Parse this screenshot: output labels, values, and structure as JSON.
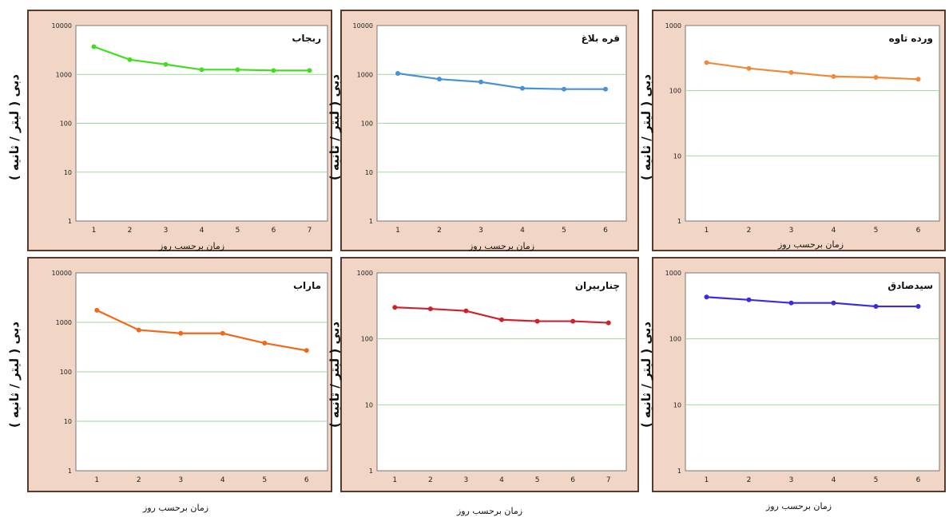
{
  "chart_data": [
    {
      "type": "line",
      "title": "ربجاب",
      "xlabel": "زمان برحسب روز",
      "ylabel": "دبی ( لیتر / ثانیه )",
      "yscale": "log",
      "ylim": [
        1,
        10000
      ],
      "yticks": [
        "1",
        "10",
        "100",
        "1000",
        "10000"
      ],
      "x": [
        1,
        2,
        3,
        4,
        5,
        6,
        7
      ],
      "y": [
        3700,
        2000,
        1600,
        1250,
        1250,
        1200,
        1200
      ],
      "color": "#44dd22"
    },
    {
      "type": "line",
      "title": "قره بلاغ",
      "xlabel": "زمان برحسب روز",
      "ylabel": "دبی ( لیتر / ثانیه )",
      "yscale": "log",
      "ylim": [
        1,
        10000
      ],
      "yticks": [
        "1",
        "10",
        "100",
        "1000",
        "10000"
      ],
      "x": [
        1,
        2,
        3,
        4,
        5,
        6
      ],
      "y": [
        1050,
        800,
        700,
        520,
        500,
        500
      ],
      "color": "#4a90d9"
    },
    {
      "type": "line",
      "title": "ورده تاوه",
      "xlabel": "زمان برحسب روز",
      "ylabel": "دبی ( لیتر / ثانیه )",
      "yscale": "log",
      "ylim": [
        1,
        1000
      ],
      "yticks": [
        "1",
        "10",
        "100",
        "1000"
      ],
      "x": [
        1,
        2,
        3,
        4,
        5,
        6
      ],
      "y": [
        270,
        220,
        190,
        165,
        160,
        150
      ],
      "color": "#f08a3a"
    },
    {
      "type": "line",
      "title": "ماراب",
      "xlabel": "زمان برحسب روز",
      "ylabel": "دبی ( لیتر / ثانیه )",
      "yscale": "log",
      "ylim": [
        1,
        10000
      ],
      "yticks": [
        "1",
        "10",
        "100",
        "1000",
        "10000"
      ],
      "x": [
        1,
        2,
        3,
        4,
        5,
        6
      ],
      "y": [
        1750,
        700,
        600,
        600,
        380,
        270
      ],
      "color": "#ee6a1a"
    },
    {
      "type": "line",
      "title": "چناربیران",
      "xlabel": "زمان برحسب روز",
      "ylabel": "دبی ( لیتر / ثانیه )",
      "yscale": "log",
      "ylim": [
        1,
        1000
      ],
      "yticks": [
        "1",
        "10",
        "100",
        "1000"
      ],
      "x": [
        1,
        2,
        3,
        4,
        5,
        6,
        7
      ],
      "y": [
        300,
        285,
        265,
        195,
        185,
        185,
        175
      ],
      "color": "#d0202a"
    },
    {
      "type": "line",
      "title": "سیدصادق",
      "xlabel": "زمان برحسب روز",
      "ylabel": "دبی ( لیتر / ثانیه )",
      "yscale": "log",
      "ylim": [
        1,
        1000
      ],
      "yticks": [
        "1",
        "10",
        "100",
        "1000"
      ],
      "x": [
        1,
        2,
        3,
        4,
        5,
        6
      ],
      "y": [
        430,
        390,
        350,
        350,
        310,
        310
      ],
      "color": "#3a2ae0"
    }
  ]
}
